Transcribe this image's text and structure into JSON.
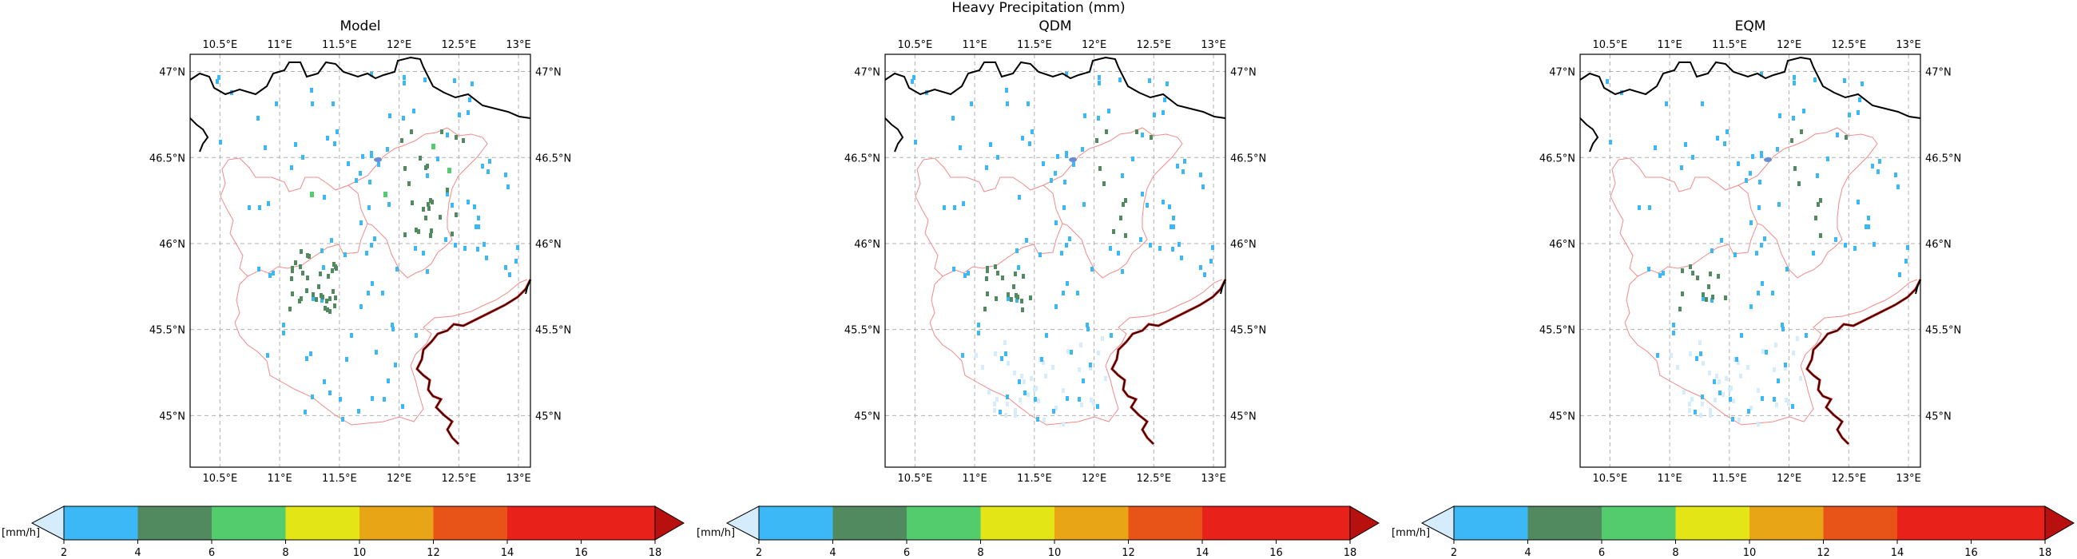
{
  "figure": {
    "title": "Heavy Precipitation (mm)"
  },
  "panels": [
    {
      "title": "Model"
    },
    {
      "title": "QDM"
    },
    {
      "title": "EQM"
    }
  ],
  "axes": {
    "lon_labels": [
      "10.5°E",
      "11°E",
      "11.5°E",
      "12°E",
      "12.5°E",
      "13°E"
    ],
    "lat_labels": [
      "47°N",
      "46.5°N",
      "46°N",
      "45.5°N",
      "45°N"
    ],
    "gridlines": "dashed gray",
    "lon_range": [
      10.25,
      13.1
    ],
    "lat_range": [
      44.7,
      47.1
    ]
  },
  "colorbar": {
    "unit": "[mm/h]",
    "ticks": [
      "2",
      "4",
      "6",
      "8",
      "10",
      "12",
      "14",
      "16",
      "18"
    ],
    "bins": [
      {
        "from": 2,
        "to": 4,
        "color": "#3bb8f5"
      },
      {
        "from": 4,
        "to": 6,
        "color": "#508a5e"
      },
      {
        "from": 6,
        "to": 8,
        "color": "#52cc6c"
      },
      {
        "from": 8,
        "to": 10,
        "color": "#e3e517"
      },
      {
        "from": 10,
        "to": 12,
        "color": "#e8a617"
      },
      {
        "from": 12,
        "to": 14,
        "color": "#e85417"
      },
      {
        "from": 14,
        "to": 18,
        "color": "#e8221b"
      }
    ],
    "under_color": "#d4ecfb",
    "over_color": "#b80f0f",
    "extend": "both"
  },
  "colors": {
    "coastline": "#000000",
    "region_border": "#f08a8a",
    "lagoon_red": "#cc0000",
    "grid": "#b0b0b0",
    "sea_blue": "#6a8fd0"
  }
}
